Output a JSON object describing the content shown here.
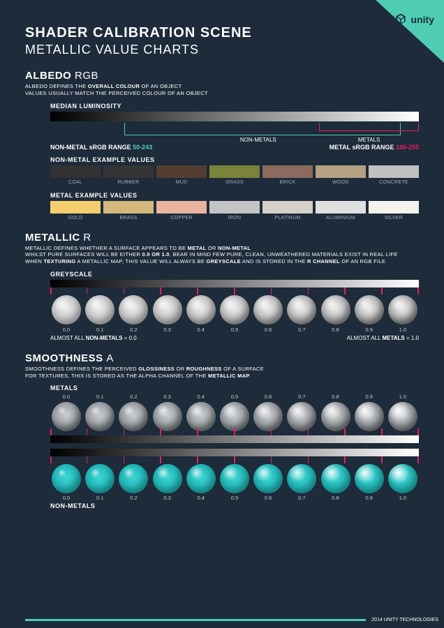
{
  "brand": "unity",
  "title": "SHADER CALIBRATION SCENE",
  "subtitle": "METALLIC VALUE CHARTS",
  "footer": "2014 UNITY TECHNOLOGIES",
  "accent_teal": "#4ecdb4",
  "accent_pink": "#e91e63",
  "bg": "#1d2b3a",
  "albedo": {
    "title": "ALBEDO",
    "channel": "RGB",
    "desc1": "ALBEDO DEFINES THE ",
    "desc1b": "OVERALL COLOUR",
    "desc1c": " OF AN OBJECT",
    "desc2": "VALUES USUALLY MATCH THE PERCEIVED COLOUR OF AN OBJECT",
    "median_label": "MEDIAN LUMINOSITY",
    "nonmetal_label": "NON-METALS",
    "metal_label": "METALS",
    "nonmetal_range_label": "NON-METAL sRGB RANGE ",
    "nonmetal_range": "50-243",
    "metal_range_label": "METAL sRGB RANGE ",
    "metal_range": "186-255",
    "nonmetal_ex_label": "NON-METAL EXAMPLE VALUES",
    "metal_ex_label": "METAL EXAMPLE VALUES",
    "nonmetal_swatches": [
      {
        "name": "COAL",
        "color": "#323232"
      },
      {
        "name": "RUBBER",
        "color": "#353535"
      },
      {
        "name": "MUD",
        "color": "#553d31"
      },
      {
        "name": "GRASS",
        "color": "#7b8239"
      },
      {
        "name": "BRICK",
        "color": "#8c6a5e"
      },
      {
        "name": "WOOD",
        "color": "#b4a283"
      },
      {
        "name": "CONCRETE",
        "color": "#c0c0c0"
      }
    ],
    "metal_swatches": [
      {
        "name": "GOLD",
        "color": "#f4cd6e"
      },
      {
        "name": "BRASS",
        "color": "#d4b87c"
      },
      {
        "name": "COPPER",
        "color": "#e8b4a0"
      },
      {
        "name": "IRON",
        "color": "#c4c4c4"
      },
      {
        "name": "PLATINUM",
        "color": "#d5d0c8"
      },
      {
        "name": "ALUMINIUM",
        "color": "#e0e0e0"
      },
      {
        "name": "SILVER",
        "color": "#f5f3ed"
      }
    ],
    "bracket_nonmetal": {
      "left_pct": 20,
      "right_pct": 95
    },
    "bracket_metal": {
      "left_pct": 73,
      "right_pct": 100
    }
  },
  "metallic": {
    "title": "METALLIC",
    "channel": "R",
    "desc": "METALLIC DEFINES WHETHER A SURFACE APPEARS TO BE <b>METAL</b> OR <b>NON-METAL</b><br>WHILST PURE SURFACES WILL BE EITHER <b>0.0 OR 1.0</b>, BEAR IN MIND FEW PURE, CLEAN, UNWEATHERED MATERIALS EXIST IN REAL LIFE<br>WHEN <b>TEXTURING</b> A METALLIC MAP, THIS VALUE WILL ALWAYS BE <b>GREYSCALE</b> AND IS STORED IN THE <b>R CHANNEL</b> OF AN RGB FILE",
    "greyscale_label": "GREYSCALE",
    "values": [
      "0.0",
      "0.1",
      "0.2",
      "0.3",
      "0.4",
      "0.5",
      "0.6",
      "0.7",
      "0.8",
      "0.9",
      "1.0"
    ],
    "note_left": "ALMOST ALL <b>NON-METALS</b> = 0.0",
    "note_right": "ALMOST ALL <b>METALS</b> = 1.0",
    "sphere_base": "#e8e8e8"
  },
  "smoothness": {
    "title": "SMOOTHNESS",
    "channel": "A",
    "desc": "SMOOTHNESS DEFINES THE PERCEIVED <b>GLOSSINESS</b> OR <b>ROUGHNESS</b> OF A SURFACE<br>FOR TEXTURES, THIS IS STORED AS THE ALPHA CHANNEL OF THE <b>METALLIC MAP</b>",
    "metals_label": "METALS",
    "nonmetals_label": "NON-METALS",
    "values": [
      "0.0",
      "0.1",
      "0.2",
      "0.3",
      "0.4",
      "0.5",
      "0.6",
      "0.7",
      "0.8",
      "0.9",
      "1.0"
    ],
    "metal_sphere": "#c8ccd0",
    "nonmetal_sphere": "#3dd4d4"
  }
}
